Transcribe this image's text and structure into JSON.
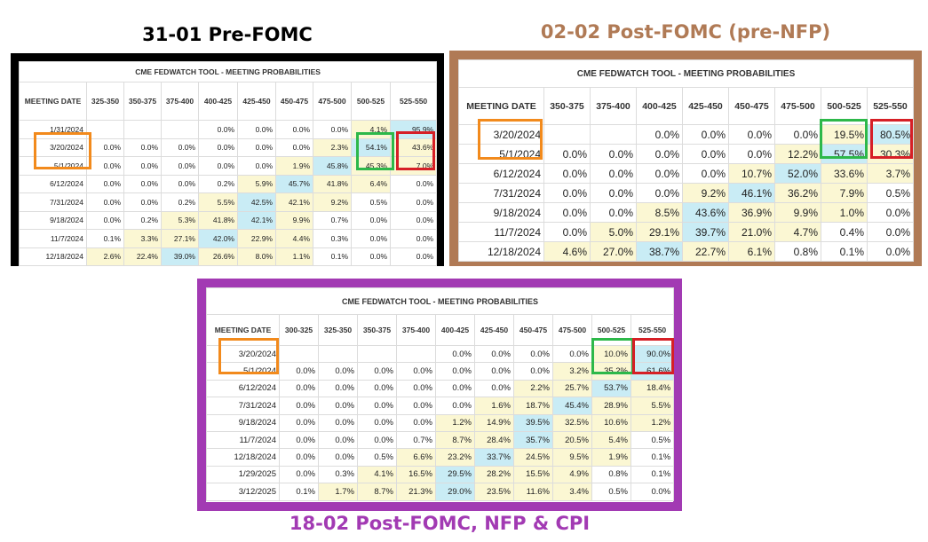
{
  "panels": [
    {
      "title": "31-01 Pre-FOMC",
      "table_title": "CME FEDWATCH TOOL - MEETING PROBABILITIES",
      "columns": [
        "MEETING DATE",
        "325-350",
        "350-375",
        "375-400",
        "400-425",
        "425-450",
        "450-475",
        "475-500",
        "500-525",
        "525-550"
      ],
      "rows": [
        [
          "1/31/2024",
          "",
          "",
          "",
          "0.0%",
          "0.0%",
          "0.0%",
          "0.0%",
          "4.1%",
          "95.9%"
        ],
        [
          "3/20/2024",
          "0.0%",
          "0.0%",
          "0.0%",
          "0.0%",
          "0.0%",
          "0.0%",
          "2.3%",
          "54.1%",
          "43.6%"
        ],
        [
          "5/1/2024",
          "0.0%",
          "0.0%",
          "0.0%",
          "0.0%",
          "0.0%",
          "1.9%",
          "45.8%",
          "45.3%",
          "7.0%"
        ],
        [
          "6/12/2024",
          "0.0%",
          "0.0%",
          "0.0%",
          "0.2%",
          "5.9%",
          "45.7%",
          "41.8%",
          "6.4%",
          "0.0%"
        ],
        [
          "7/31/2024",
          "0.0%",
          "0.0%",
          "0.2%",
          "5.5%",
          "42.5%",
          "42.1%",
          "9.2%",
          "0.5%",
          "0.0%"
        ],
        [
          "9/18/2024",
          "0.0%",
          "0.2%",
          "5.3%",
          "41.8%",
          "42.1%",
          "9.9%",
          "0.7%",
          "0.0%",
          "0.0%"
        ],
        [
          "11/7/2024",
          "0.1%",
          "3.3%",
          "27.1%",
          "42.0%",
          "22.9%",
          "4.4%",
          "0.3%",
          "0.0%",
          "0.0%"
        ],
        [
          "12/18/2024",
          "2.6%",
          "22.4%",
          "39.0%",
          "26.6%",
          "8.0%",
          "1.1%",
          "0.1%",
          "0.0%",
          "0.0%"
        ]
      ]
    },
    {
      "title": "02-02 Post-FOMC (pre-NFP)",
      "table_title": "CME FEDWATCH TOOL - MEETING PROBABILITIES",
      "columns": [
        "MEETING DATE",
        "350-375",
        "375-400",
        "400-425",
        "425-450",
        "450-475",
        "475-500",
        "500-525",
        "525-550"
      ],
      "rows": [
        [
          "3/20/2024",
          "",
          "",
          "0.0%",
          "0.0%",
          "0.0%",
          "0.0%",
          "19.5%",
          "80.5%"
        ],
        [
          "5/1/2024",
          "0.0%",
          "0.0%",
          "0.0%",
          "0.0%",
          "0.0%",
          "12.2%",
          "57.5%",
          "30.3%"
        ],
        [
          "6/12/2024",
          "0.0%",
          "0.0%",
          "0.0%",
          "0.0%",
          "10.7%",
          "52.0%",
          "33.6%",
          "3.7%"
        ],
        [
          "7/31/2024",
          "0.0%",
          "0.0%",
          "0.0%",
          "9.2%",
          "46.1%",
          "36.2%",
          "7.9%",
          "0.5%"
        ],
        [
          "9/18/2024",
          "0.0%",
          "0.0%",
          "8.5%",
          "43.6%",
          "36.9%",
          "9.9%",
          "1.0%",
          "0.0%"
        ],
        [
          "11/7/2024",
          "0.0%",
          "5.0%",
          "29.1%",
          "39.7%",
          "21.0%",
          "4.7%",
          "0.4%",
          "0.0%"
        ],
        [
          "12/18/2024",
          "4.6%",
          "27.0%",
          "38.7%",
          "22.7%",
          "6.1%",
          "0.8%",
          "0.1%",
          "0.0%"
        ]
      ]
    },
    {
      "title": "18-02 Post-FOMC, NFP & CPI",
      "table_title": "CME FEDWATCH TOOL - MEETING PROBABILITIES",
      "columns": [
        "MEETING DATE",
        "300-325",
        "325-350",
        "350-375",
        "375-400",
        "400-425",
        "425-450",
        "450-475",
        "475-500",
        "500-525",
        "525-550"
      ],
      "rows": [
        [
          "3/20/2024",
          "",
          "",
          "",
          "",
          "0.0%",
          "0.0%",
          "0.0%",
          "0.0%",
          "10.0%",
          "90.0%"
        ],
        [
          "5/1/2024",
          "0.0%",
          "0.0%",
          "0.0%",
          "0.0%",
          "0.0%",
          "0.0%",
          "0.0%",
          "3.2%",
          "35.2%",
          "61.6%"
        ],
        [
          "6/12/2024",
          "0.0%",
          "0.0%",
          "0.0%",
          "0.0%",
          "0.0%",
          "0.0%",
          "2.2%",
          "25.7%",
          "53.7%",
          "18.4%"
        ],
        [
          "7/31/2024",
          "0.0%",
          "0.0%",
          "0.0%",
          "0.0%",
          "0.0%",
          "1.6%",
          "18.7%",
          "45.4%",
          "28.9%",
          "5.5%"
        ],
        [
          "9/18/2024",
          "0.0%",
          "0.0%",
          "0.0%",
          "0.0%",
          "1.2%",
          "14.9%",
          "39.5%",
          "32.5%",
          "10.6%",
          "1.2%"
        ],
        [
          "11/7/2024",
          "0.0%",
          "0.0%",
          "0.0%",
          "0.7%",
          "8.7%",
          "28.4%",
          "35.7%",
          "20.5%",
          "5.4%",
          "0.5%"
        ],
        [
          "12/18/2024",
          "0.0%",
          "0.0%",
          "0.5%",
          "6.6%",
          "23.2%",
          "33.7%",
          "24.5%",
          "9.5%",
          "1.9%",
          "0.1%"
        ],
        [
          "1/29/2025",
          "0.0%",
          "0.3%",
          "4.1%",
          "16.5%",
          "29.5%",
          "28.2%",
          "15.5%",
          "4.9%",
          "0.8%",
          "0.1%"
        ],
        [
          "3/12/2025",
          "0.1%",
          "1.7%",
          "8.7%",
          "21.3%",
          "29.0%",
          "23.5%",
          "11.6%",
          "3.4%",
          "0.5%",
          "0.0%"
        ]
      ]
    }
  ],
  "chart_data": [
    {
      "type": "table",
      "title": "31-01 Pre-FOMC",
      "columns": [
        "MEETING DATE",
        "325-350",
        "350-375",
        "375-400",
        "400-425",
        "425-450",
        "450-475",
        "475-500",
        "500-525",
        "525-550"
      ],
      "rows": [
        [
          "1/31/2024",
          null,
          null,
          null,
          0.0,
          0.0,
          0.0,
          0.0,
          4.1,
          95.9
        ],
        [
          "3/20/2024",
          0.0,
          0.0,
          0.0,
          0.0,
          0.0,
          0.0,
          2.3,
          54.1,
          43.6
        ],
        [
          "5/1/2024",
          0.0,
          0.0,
          0.0,
          0.0,
          0.0,
          1.9,
          45.8,
          45.3,
          7.0
        ],
        [
          "6/12/2024",
          0.0,
          0.0,
          0.0,
          0.2,
          5.9,
          45.7,
          41.8,
          6.4,
          0.0
        ],
        [
          "7/31/2024",
          0.0,
          0.0,
          0.2,
          5.5,
          42.5,
          42.1,
          9.2,
          0.5,
          0.0
        ],
        [
          "9/18/2024",
          0.0,
          0.2,
          5.3,
          41.8,
          42.1,
          9.9,
          0.7,
          0.0,
          0.0
        ],
        [
          "11/7/2024",
          0.1,
          3.3,
          27.1,
          42.0,
          22.9,
          4.4,
          0.3,
          0.0,
          0.0
        ],
        [
          "12/18/2024",
          2.6,
          22.4,
          39.0,
          26.6,
          8.0,
          1.1,
          0.1,
          0.0,
          0.0
        ]
      ]
    },
    {
      "type": "table",
      "title": "02-02 Post-FOMC (pre-NFP)",
      "columns": [
        "MEETING DATE",
        "350-375",
        "375-400",
        "400-425",
        "425-450",
        "450-475",
        "475-500",
        "500-525",
        "525-550"
      ],
      "rows": [
        [
          "3/20/2024",
          null,
          null,
          0.0,
          0.0,
          0.0,
          0.0,
          19.5,
          80.5
        ],
        [
          "5/1/2024",
          0.0,
          0.0,
          0.0,
          0.0,
          0.0,
          12.2,
          57.5,
          30.3
        ],
        [
          "6/12/2024",
          0.0,
          0.0,
          0.0,
          0.0,
          10.7,
          52.0,
          33.6,
          3.7
        ],
        [
          "7/31/2024",
          0.0,
          0.0,
          0.0,
          9.2,
          46.1,
          36.2,
          7.9,
          0.5
        ],
        [
          "9/18/2024",
          0.0,
          0.0,
          8.5,
          43.6,
          36.9,
          9.9,
          1.0,
          0.0
        ],
        [
          "11/7/2024",
          0.0,
          5.0,
          29.1,
          39.7,
          21.0,
          4.7,
          0.4,
          0.0
        ],
        [
          "12/18/2024",
          4.6,
          27.0,
          38.7,
          22.7,
          6.1,
          0.8,
          0.1,
          0.0
        ]
      ]
    },
    {
      "type": "table",
      "title": "18-02 Post-FOMC, NFP & CPI",
      "columns": [
        "MEETING DATE",
        "300-325",
        "325-350",
        "350-375",
        "375-400",
        "400-425",
        "425-450",
        "450-475",
        "475-500",
        "500-525",
        "525-550"
      ],
      "rows": [
        [
          "3/20/2024",
          null,
          null,
          null,
          null,
          0.0,
          0.0,
          0.0,
          0.0,
          10.0,
          90.0
        ],
        [
          "5/1/2024",
          0.0,
          0.0,
          0.0,
          0.0,
          0.0,
          0.0,
          0.0,
          3.2,
          35.2,
          61.6
        ],
        [
          "6/12/2024",
          0.0,
          0.0,
          0.0,
          0.0,
          0.0,
          0.0,
          2.2,
          25.7,
          53.7,
          18.4
        ],
        [
          "7/31/2024",
          0.0,
          0.0,
          0.0,
          0.0,
          0.0,
          1.6,
          18.7,
          45.4,
          28.9,
          5.5
        ],
        [
          "9/18/2024",
          0.0,
          0.0,
          0.0,
          0.0,
          1.2,
          14.9,
          39.5,
          32.5,
          10.6,
          1.2
        ],
        [
          "11/7/2024",
          0.0,
          0.0,
          0.0,
          0.7,
          8.7,
          28.4,
          35.7,
          20.5,
          5.4,
          0.5
        ],
        [
          "12/18/2024",
          0.0,
          0.0,
          0.5,
          6.6,
          23.2,
          33.7,
          24.5,
          9.5,
          1.9,
          0.1
        ],
        [
          "1/29/2025",
          0.0,
          0.3,
          4.1,
          16.5,
          29.5,
          28.2,
          15.5,
          4.9,
          0.8,
          0.1
        ],
        [
          "3/12/2025",
          0.1,
          1.7,
          8.7,
          21.3,
          29.0,
          23.5,
          11.6,
          3.4,
          0.5,
          0.0
        ]
      ]
    }
  ],
  "colors": {
    "panel_1_border": "#000000",
    "panel_2_border": "#b07a55",
    "panel_3_border": "#a23ab3",
    "highlight_cell": "#c9ecf5",
    "secondary_cell": "#fbf7d3",
    "marker_orange": "#f28a1c",
    "marker_green": "#2db84a",
    "marker_red": "#d61f26"
  }
}
